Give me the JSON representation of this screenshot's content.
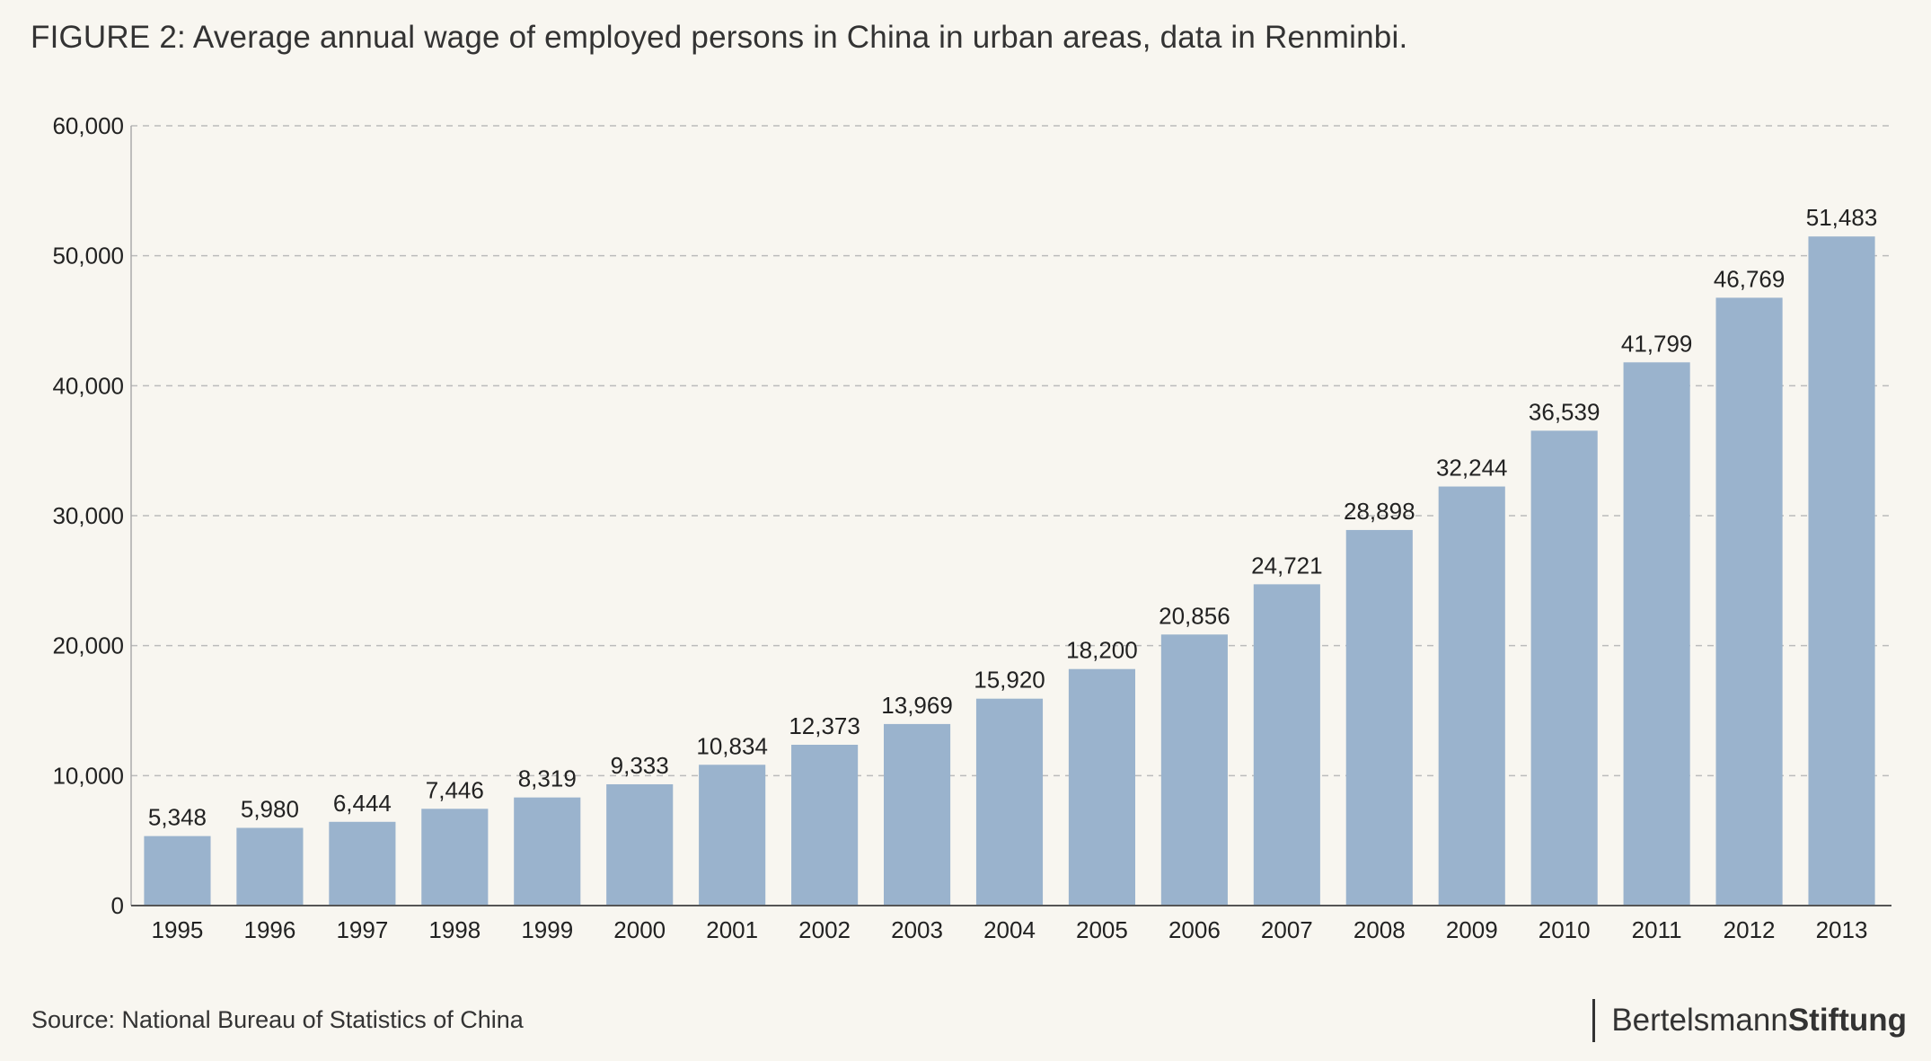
{
  "title": "FIGURE 2: Average annual wage of employed persons in China in urban areas, data in Renminbi.",
  "source": "Source: National Bureau of Statistics of China",
  "brand": {
    "regular": "Bertelsmann",
    "bold": "Stiftung"
  },
  "colors": {
    "bar": "#9ab3cd",
    "grid": "#bbbbbb",
    "axis": "#555555",
    "background": "#f8f6f0"
  },
  "chart_data": {
    "type": "bar",
    "title": "FIGURE 2: Average annual wage of employed persons in China in urban areas, data in Renminbi.",
    "xlabel": "",
    "ylabel": "",
    "categories": [
      "1995",
      "1996",
      "1997",
      "1998",
      "1999",
      "2000",
      "2001",
      "2002",
      "2003",
      "2004",
      "2005",
      "2006",
      "2007",
      "2008",
      "2009",
      "2010",
      "2011",
      "2012",
      "2013"
    ],
    "values": [
      5348,
      5980,
      6444,
      7446,
      8319,
      9333,
      10834,
      12373,
      13969,
      15920,
      18200,
      20856,
      24721,
      28898,
      32244,
      36539,
      41799,
      46769,
      51483
    ],
    "data_labels": [
      "5,348",
      "5,980",
      "6,444",
      "7,446",
      "8,319",
      "9,333",
      "10,834",
      "12,373",
      "13,969",
      "15,920",
      "18,200",
      "20,856",
      "24,721",
      "28,898",
      "32,244",
      "36,539",
      "41,799",
      "46,769",
      "51,483"
    ],
    "ylim": [
      0,
      60000
    ],
    "yticks": [
      0,
      10000,
      20000,
      30000,
      40000,
      50000,
      60000
    ],
    "ytick_labels": [
      "0",
      "10,000",
      "20,000",
      "30,000",
      "40,000",
      "50,000",
      "60,000"
    ],
    "grid": "horizontal dashed",
    "legend": "none"
  }
}
